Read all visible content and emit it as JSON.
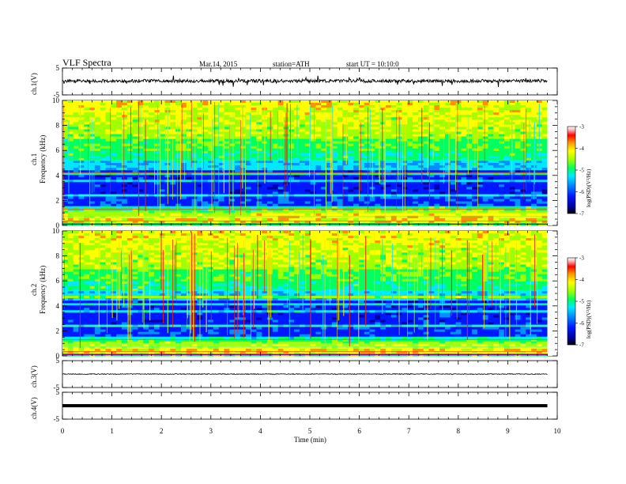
{
  "header": {
    "title": "VLF Spectra",
    "date": "Mar.14, 2015",
    "station": "station=ATH",
    "start": "start UT =  10:10:0"
  },
  "colors": {
    "colormap": [
      "#000000",
      "#0000a0",
      "#0018ff",
      "#0090ff",
      "#00e8ff",
      "#00ff60",
      "#a0ff00",
      "#ffff00",
      "#ff9000",
      "#ff0000",
      "#ffb0b0",
      "#ffffff"
    ],
    "waveform": "#000000"
  },
  "chart_data": [
    {
      "type": "line",
      "id": "ch1",
      "ylabel": "ch.1(V)",
      "ylim": [
        -5,
        5
      ],
      "y_ticks": [
        "5",
        "-5"
      ],
      "x": [
        0,
        9.8
      ],
      "mean": 0.2,
      "amplitude": 0.6,
      "xlim": [
        0,
        10
      ],
      "grid": false
    },
    {
      "type": "heatmap",
      "id": "ch1-spec",
      "ylabel": "ch.1\nFrequency (kHz)",
      "ylim": [
        0,
        10
      ],
      "y_ticks": [
        "0",
        "2",
        "4",
        "6",
        "8",
        "10"
      ],
      "xlim": [
        0,
        10
      ],
      "x_data_end": 9.8,
      "colorbar": {
        "label": "log(PSD)(V²/Hz)",
        "range": [
          -7,
          -3
        ],
        "ticks": [
          "-3",
          "-4",
          "-5",
          "-6",
          "-7"
        ]
      }
    },
    {
      "type": "heatmap",
      "id": "ch2-spec",
      "ylabel": "ch.2\nFrequency (kHz)",
      "ylim": [
        0,
        10
      ],
      "y_ticks": [
        "0",
        "2",
        "4",
        "6",
        "8",
        "10"
      ],
      "xlim": [
        0,
        10
      ],
      "x_data_end": 9.8,
      "colorbar": {
        "label": "log(PSD)(V²/Hz)",
        "range": [
          -7,
          -3
        ],
        "ticks": [
          "-3",
          "-4",
          "-5",
          "-6",
          "-7"
        ]
      }
    },
    {
      "type": "line",
      "id": "ch3",
      "ylabel": "ch.3(V)",
      "ylim": [
        -5,
        5
      ],
      "y_ticks": [
        "5",
        "-5"
      ],
      "x": [
        0,
        9.8
      ],
      "mean": 0.0,
      "amplitude": 0.15,
      "xlim": [
        0,
        10
      ]
    },
    {
      "type": "line",
      "id": "ch4",
      "ylabel": "ch.4(V)",
      "ylim": [
        -5,
        5
      ],
      "y_ticks": [
        "5",
        "-5"
      ],
      "x": [
        0,
        9.8
      ],
      "mean": 0.0,
      "amplitude": 0.3,
      "xlim": [
        0,
        10
      ]
    }
  ],
  "x_axis": {
    "label": "Time (min)",
    "ticks": [
      "0",
      "1",
      "2",
      "3",
      "4",
      "5",
      "6",
      "7",
      "8",
      "9",
      "10"
    ]
  }
}
